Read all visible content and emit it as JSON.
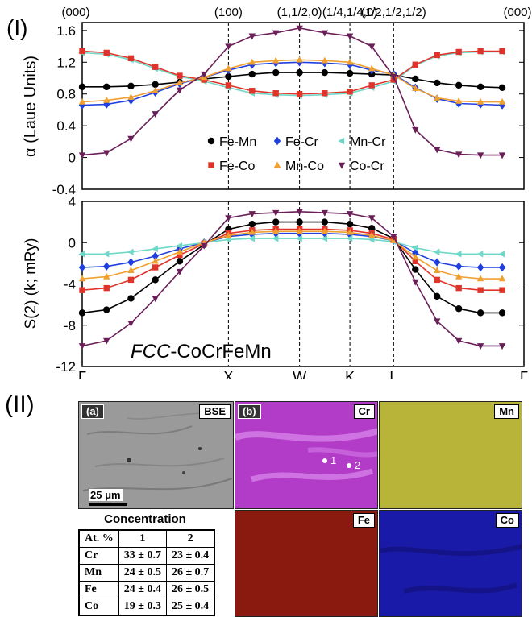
{
  "figure": {
    "part1_label": "(I)",
    "part2_label": "(II)",
    "material_prefix": "FCC",
    "material_suffix": "-CoCrFeMn"
  },
  "chart_data": [
    {
      "type": "line",
      "ylabel": "α  (Laue Units)",
      "ylim": [
        -0.4,
        1.7
      ],
      "yticks": [
        -0.4,
        0,
        0.4,
        0.8,
        1.2,
        1.6
      ],
      "top_labels": [
        "(000)",
        "(100)",
        "(1,1/2,0)",
        "(1/4,1/4,0)",
        "(1/2,1/2,1/2)",
        "(000)"
      ],
      "xticks": [
        "Γ",
        "X",
        "W",
        "K",
        "L",
        "Γ"
      ],
      "legend_position": "inside-bottom-center",
      "series": [
        {
          "name": "Fe-Mn",
          "color": "#000000",
          "marker": "circle",
          "values": [
            0.89,
            0.89,
            0.9,
            0.92,
            0.95,
            0.99,
            1.02,
            1.05,
            1.07,
            1.07,
            1.07,
            1.06,
            1.05,
            1.04,
            0.99,
            0.94,
            0.91,
            0.89,
            0.88
          ]
        },
        {
          "name": "Fe-Cr",
          "color": "#1f3fe0",
          "marker": "diamond",
          "values": [
            0.66,
            0.67,
            0.72,
            0.82,
            0.93,
            1.01,
            1.1,
            1.17,
            1.19,
            1.2,
            1.19,
            1.17,
            1.1,
            1.05,
            0.88,
            0.74,
            0.68,
            0.67,
            0.66
          ]
        },
        {
          "name": "Mn-Cr",
          "color": "#70d8c8",
          "marker": "triangle-left",
          "values": [
            1.32,
            1.3,
            1.23,
            1.12,
            1.02,
            0.96,
            0.88,
            0.81,
            0.79,
            0.78,
            0.79,
            0.81,
            0.88,
            0.96,
            1.16,
            1.28,
            1.32,
            1.33,
            1.33
          ]
        },
        {
          "name": "Fe-Co",
          "color": "#e0342a",
          "marker": "square",
          "values": [
            1.34,
            1.32,
            1.25,
            1.14,
            1.03,
            0.98,
            0.91,
            0.84,
            0.81,
            0.8,
            0.81,
            0.83,
            0.91,
            0.98,
            1.17,
            1.29,
            1.33,
            1.34,
            1.34
          ]
        },
        {
          "name": "Mn-Co",
          "color": "#f0a030",
          "marker": "triangle-up",
          "values": [
            0.7,
            0.72,
            0.76,
            0.84,
            0.94,
            1.01,
            1.12,
            1.2,
            1.22,
            1.23,
            1.22,
            1.2,
            1.12,
            1.04,
            0.87,
            0.75,
            0.71,
            0.7,
            0.7
          ]
        },
        {
          "name": "Co-Cr",
          "color": "#6a1f58",
          "marker": "triangle-down",
          "values": [
            0.03,
            0.06,
            0.24,
            0.55,
            0.85,
            1.05,
            1.4,
            1.53,
            1.57,
            1.63,
            1.57,
            1.53,
            1.4,
            1.02,
            0.35,
            0.1,
            0.04,
            0.03,
            0.03
          ]
        }
      ]
    },
    {
      "type": "line",
      "ylabel": "S(2) (k; mRy)",
      "ylim": [
        -12,
        4
      ],
      "yticks": [
        -12,
        -8,
        -4,
        0,
        4
      ],
      "xticks": [
        "Γ",
        "X",
        "W",
        "K",
        "L",
        "Γ"
      ],
      "series": [
        {
          "name": "Fe-Mn",
          "color": "#000000",
          "marker": "circle",
          "values": [
            -6.8,
            -6.5,
            -5.4,
            -3.6,
            -1.8,
            -0.2,
            1.3,
            1.8,
            2.0,
            2.0,
            2.0,
            1.8,
            1.4,
            0.4,
            -2.6,
            -5.2,
            -6.4,
            -6.8,
            -6.8
          ]
        },
        {
          "name": "Fe-Cr",
          "color": "#1f3fe0",
          "marker": "diamond",
          "values": [
            -2.4,
            -2.3,
            -1.9,
            -1.3,
            -0.6,
            0.0,
            0.6,
            0.8,
            0.9,
            0.9,
            0.9,
            0.8,
            0.6,
            0.2,
            -1.0,
            -1.9,
            -2.3,
            -2.4,
            -2.4
          ]
        },
        {
          "name": "Mn-Cr",
          "color": "#70d8c8",
          "marker": "triangle-left",
          "values": [
            -1.1,
            -1.1,
            -0.9,
            -0.6,
            -0.3,
            0.0,
            0.3,
            0.4,
            0.4,
            0.4,
            0.4,
            0.4,
            0.3,
            0.1,
            -0.5,
            -0.9,
            -1.1,
            -1.1,
            -1.1
          ]
        },
        {
          "name": "Fe-Co",
          "color": "#e0342a",
          "marker": "square",
          "values": [
            -4.6,
            -4.4,
            -3.6,
            -2.4,
            -1.2,
            -0.1,
            0.9,
            1.2,
            1.3,
            1.3,
            1.3,
            1.2,
            0.9,
            0.3,
            -1.8,
            -3.6,
            -4.4,
            -4.6,
            -4.6
          ]
        },
        {
          "name": "Mn-Co",
          "color": "#f0a030",
          "marker": "triangle-up",
          "values": [
            -3.5,
            -3.3,
            -2.7,
            -1.8,
            -0.9,
            0.0,
            0.7,
            1.0,
            1.1,
            1.1,
            1.1,
            1.0,
            0.7,
            0.2,
            -1.4,
            -2.7,
            -3.3,
            -3.5,
            -3.5
          ]
        },
        {
          "name": "Co-Cr",
          "color": "#6a1f58",
          "marker": "triangle-down",
          "values": [
            -10.0,
            -9.5,
            -7.8,
            -5.4,
            -2.8,
            -0.3,
            2.4,
            2.8,
            2.9,
            3.0,
            2.9,
            2.8,
            2.4,
            0.6,
            -3.8,
            -7.6,
            -9.5,
            -10.0,
            -10.0
          ]
        }
      ]
    }
  ],
  "micrographs": {
    "a_label": "(a)",
    "bse_label": "BSE",
    "scale_label": "25 μm",
    "b_label": "(b)",
    "cr_label": "Cr",
    "mn_label": "Mn",
    "fe_label": "Fe",
    "co_label": "Co",
    "point1": "1",
    "point2": "2",
    "colors": {
      "bse": "#9a9a9a",
      "cr": "#b23cc8",
      "mn": "#b8b43a",
      "fe": "#8a1a10",
      "co": "#1a1aa8"
    }
  },
  "concentration": {
    "title": "Concentration",
    "headers": [
      "At. %",
      "1",
      "2"
    ],
    "rows": [
      [
        "Cr",
        "33 ± 0.7",
        "23 ± 0.4"
      ],
      [
        "Mn",
        "24 ± 0.5",
        "26 ± 0.7"
      ],
      [
        "Fe",
        "24 ± 0.4",
        "26 ± 0.5"
      ],
      [
        "Co",
        "19 ± 0.3",
        "25 ± 0.4"
      ]
    ]
  }
}
